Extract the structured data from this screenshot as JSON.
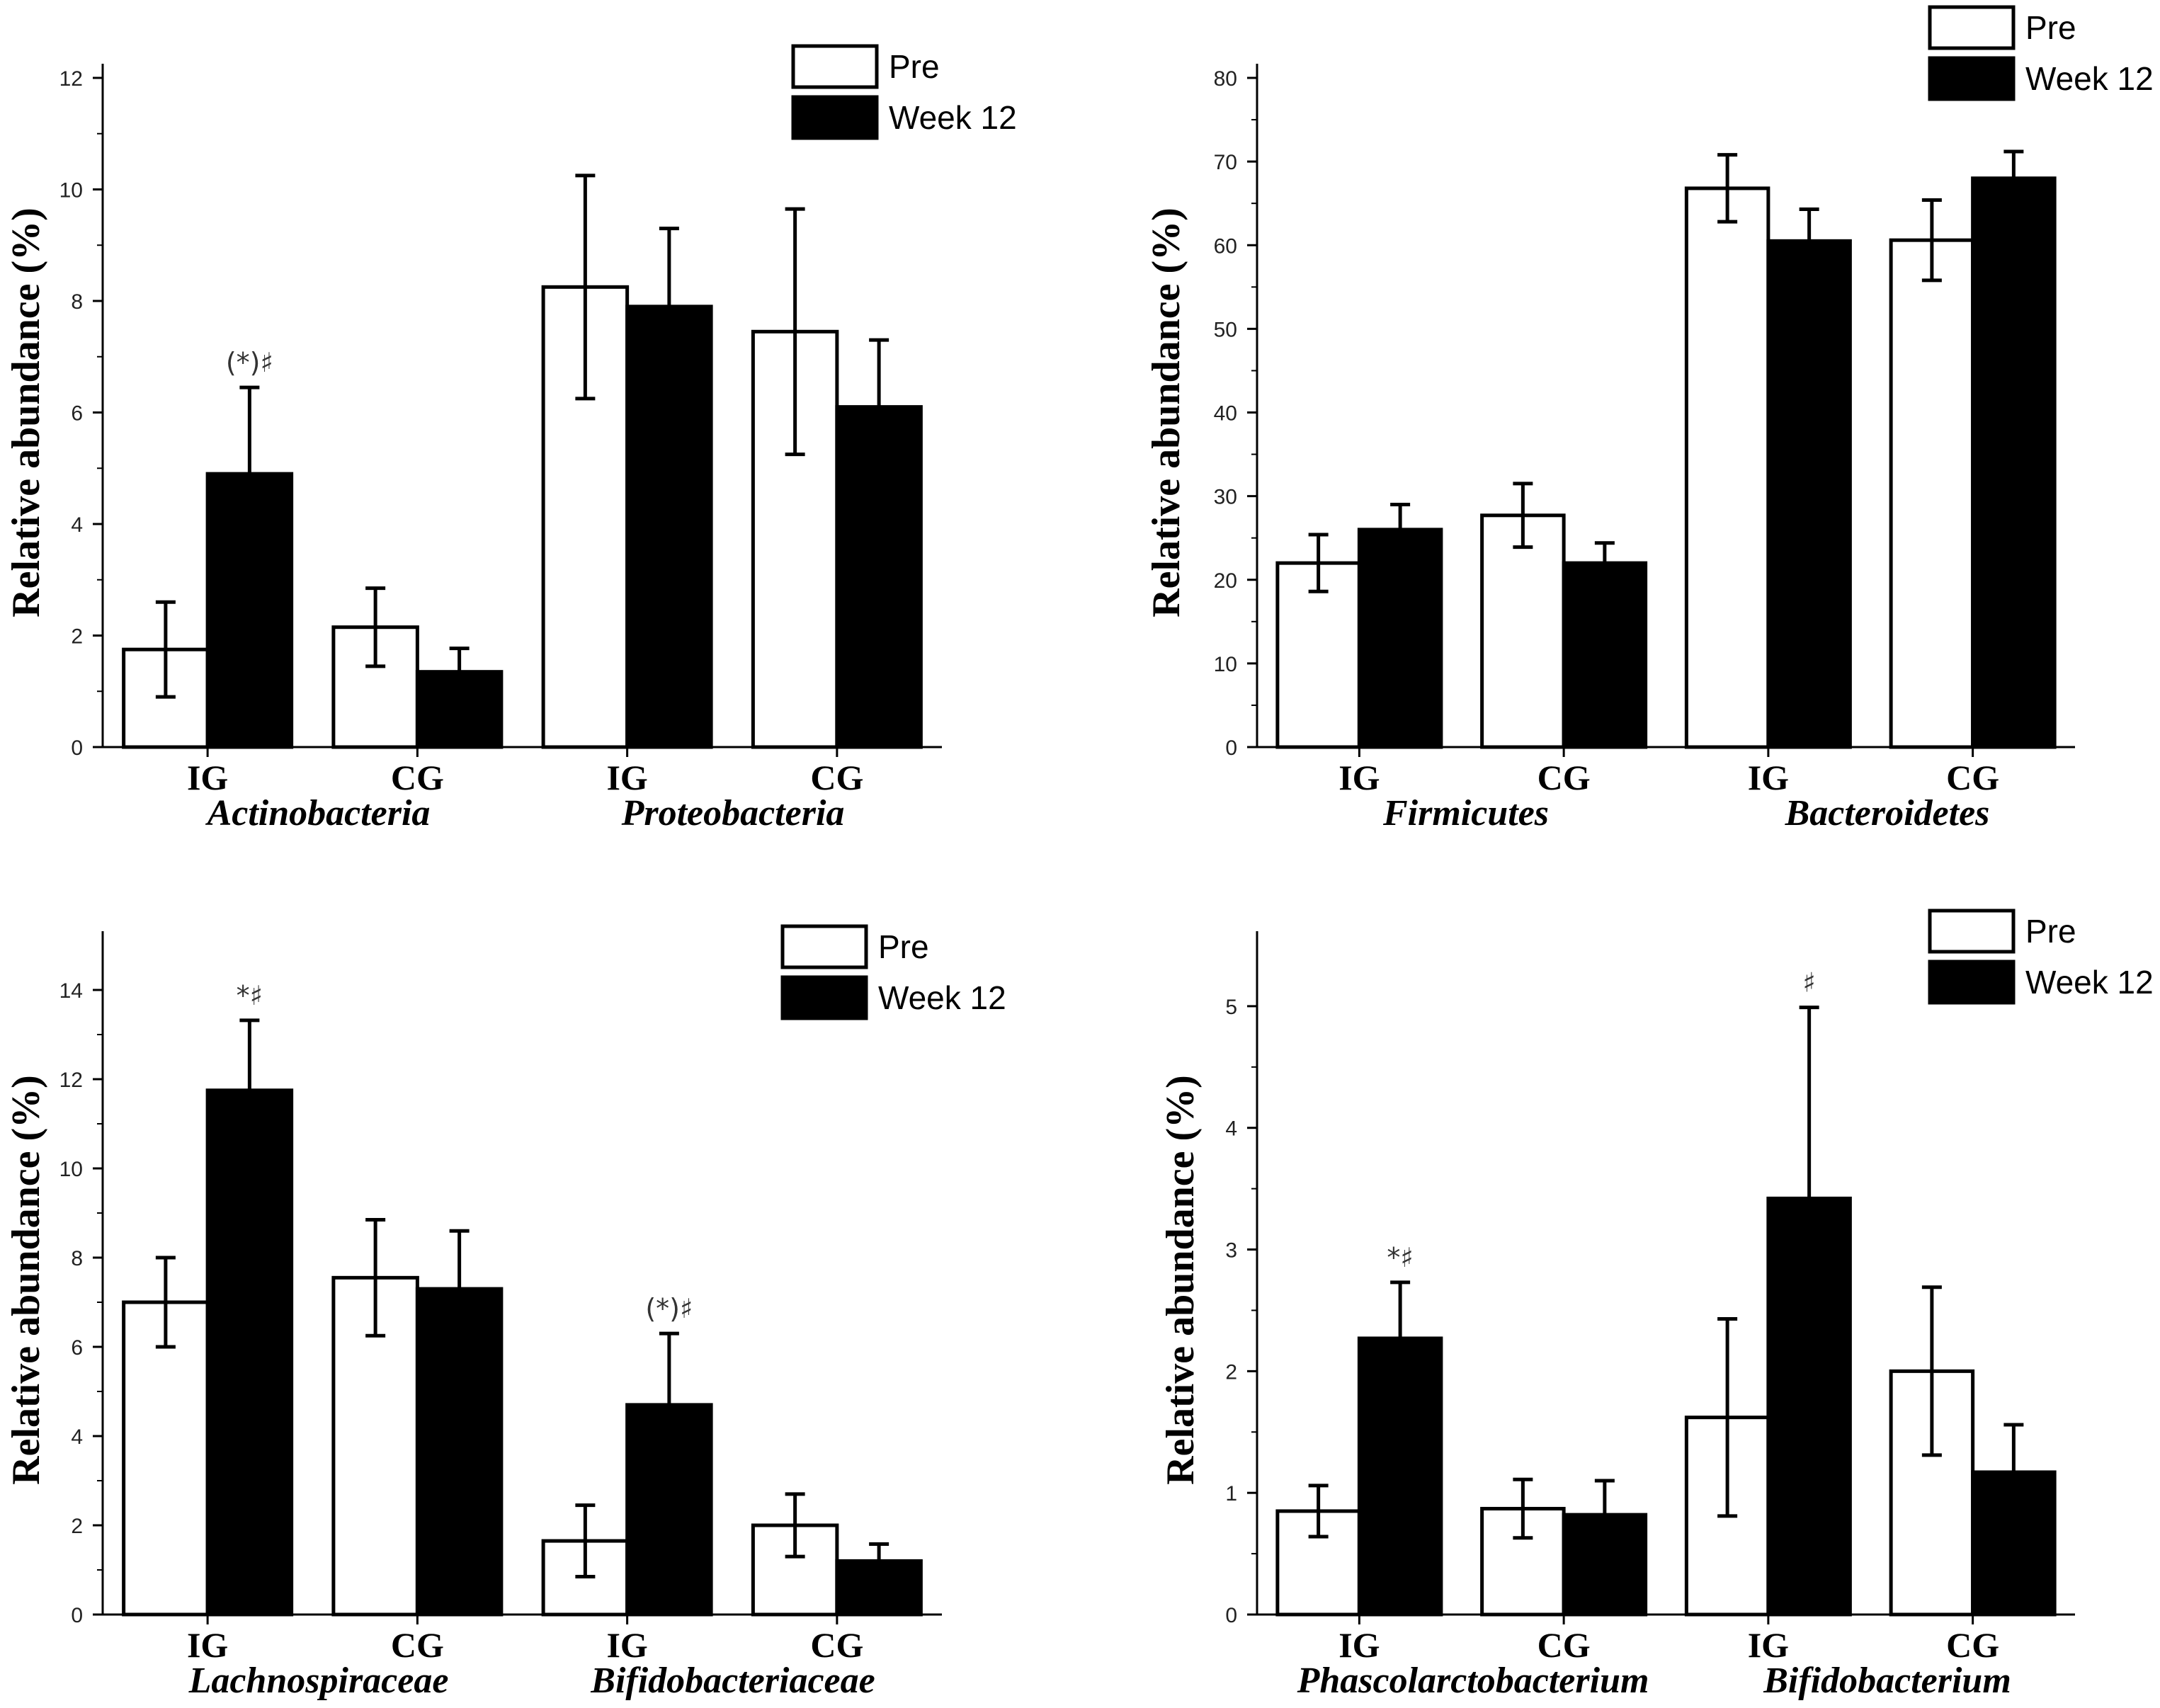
{
  "legend": {
    "pre": "Pre",
    "week12": "Week 12"
  },
  "ylabel": "Relative abundance (%)",
  "colors": {
    "pre_fill": "#ffffff",
    "week12_fill": "#000000",
    "stroke": "#000000"
  },
  "chart_data": [
    {
      "type": "bar",
      "title": "",
      "ylabel": "Relative abundance (%)",
      "ylim": [
        0,
        12
      ],
      "yticks": [
        0,
        2,
        4,
        6,
        8,
        10,
        12
      ],
      "groups": [
        "IG",
        "CG",
        "IG",
        "CG"
      ],
      "taxa": [
        "Actinobacteria",
        "Proteobacteria"
      ],
      "series": [
        {
          "name": "Pre",
          "values": [
            1.75,
            2.15,
            8.25,
            7.45
          ],
          "errors": [
            0.85,
            0.7,
            2.0,
            2.2
          ]
        },
        {
          "name": "Week 12",
          "values": [
            4.9,
            1.35,
            7.9,
            6.1
          ],
          "errors": [
            1.55,
            0.42,
            1.4,
            1.2
          ]
        }
      ],
      "annotations": [
        {
          "bar": "Week 12",
          "index": 0,
          "text": "(*)♯"
        }
      ]
    },
    {
      "type": "bar",
      "title": "",
      "ylabel": "Relative abundance (%)",
      "ylim": [
        0,
        80
      ],
      "yticks": [
        0,
        10,
        20,
        30,
        40,
        50,
        60,
        70,
        80
      ],
      "groups": [
        "IG",
        "CG",
        "IG",
        "CG"
      ],
      "taxa": [
        "Firmicutes",
        "Bacteroidetes"
      ],
      "series": [
        {
          "name": "Pre",
          "values": [
            22,
            27.7,
            66.8,
            60.6
          ],
          "errors": [
            3.4,
            3.8,
            4.0,
            4.8
          ]
        },
        {
          "name": "Week 12",
          "values": [
            26,
            22,
            60.5,
            68
          ],
          "errors": [
            3.0,
            2.4,
            3.8,
            3.2
          ]
        }
      ],
      "annotations": []
    },
    {
      "type": "bar",
      "title": "",
      "ylabel": "Relative abundance (%)",
      "ylim": [
        0,
        15
      ],
      "yticks": [
        0,
        2,
        4,
        6,
        8,
        10,
        12,
        14
      ],
      "groups": [
        "IG",
        "CG",
        "IG",
        "CG"
      ],
      "taxa": [
        "Lachnospiraceae",
        "Bifidobacteriaceae"
      ],
      "series": [
        {
          "name": "Pre",
          "values": [
            7.0,
            7.55,
            1.65,
            2.0
          ],
          "errors": [
            1.0,
            1.3,
            0.8,
            0.7
          ]
        },
        {
          "name": "Week 12",
          "values": [
            11.75,
            7.3,
            4.7,
            1.2
          ],
          "errors": [
            1.57,
            1.3,
            1.6,
            0.38
          ]
        }
      ],
      "annotations": [
        {
          "bar": "Week 12",
          "index": 0,
          "text": "*♯"
        },
        {
          "bar": "Week 12",
          "index": 2,
          "text": "(*)♯"
        }
      ]
    },
    {
      "type": "bar",
      "title": "",
      "ylabel": "Relative abundance (%)",
      "ylim": [
        0,
        5.5
      ],
      "yticks": [
        0,
        1,
        2,
        3,
        4,
        5
      ],
      "groups": [
        "IG",
        "CG",
        "IG",
        "CG"
      ],
      "taxa": [
        "Phascolarctobacterium",
        "Bifidobacterium"
      ],
      "series": [
        {
          "name": "Pre",
          "values": [
            0.85,
            0.87,
            1.62,
            2.0
          ],
          "errors": [
            0.21,
            0.24,
            0.81,
            0.69
          ]
        },
        {
          "name": "Week 12",
          "values": [
            2.27,
            0.82,
            3.42,
            1.17
          ],
          "errors": [
            0.46,
            0.28,
            1.57,
            0.39
          ]
        }
      ],
      "annotations": [
        {
          "bar": "Week 12",
          "index": 0,
          "text": "*♯"
        },
        {
          "bar": "Week 12",
          "index": 2,
          "text": "♯"
        }
      ]
    }
  ]
}
